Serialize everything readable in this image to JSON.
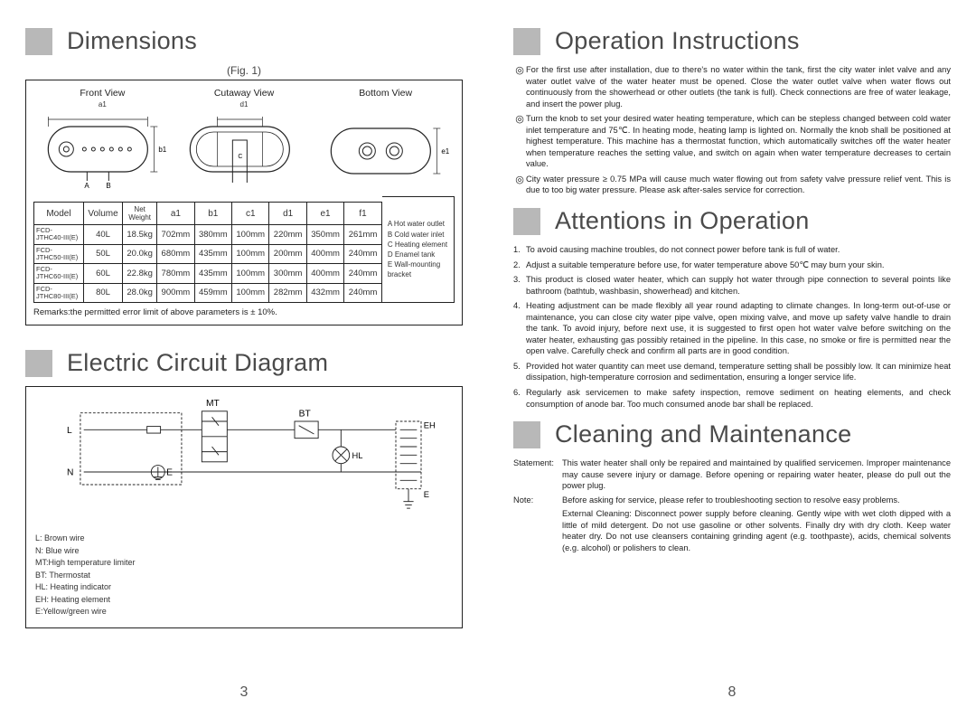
{
  "left": {
    "dimensions": {
      "title": "Dimensions",
      "fig": "(Fig. 1)",
      "views": {
        "front": "Front View",
        "cutaway": "Cutaway View",
        "bottom": "Bottom View",
        "labels": {
          "a1": "a1",
          "b1": "b1",
          "d1": "d1",
          "e1": "e1",
          "A": "A",
          "B": "B",
          "C": "C"
        }
      },
      "columns": [
        "Model",
        "Volume",
        "Net Weight",
        "a1",
        "b1",
        "c1",
        "d1",
        "e1",
        "f1"
      ],
      "rows": [
        [
          "FCD-\nJTHC40-III(E)",
          "40L",
          "18.5kg",
          "702mm",
          "380mm",
          "100mm",
          "220mm",
          "350mm",
          "261mm"
        ],
        [
          "FCD-\nJTHC50-III(E)",
          "50L",
          "20.0kg",
          "680mm",
          "435mm",
          "100mm",
          "200mm",
          "400mm",
          "240mm"
        ],
        [
          "FCD-\nJTHC60-III(E)",
          "60L",
          "22.8kg",
          "780mm",
          "435mm",
          "100mm",
          "300mm",
          "400mm",
          "240mm"
        ],
        [
          "FCD-\nJTHC80-III(E)",
          "80L",
          "28.0kg",
          "900mm",
          "459mm",
          "100mm",
          "282mm",
          "432mm",
          "240mm"
        ]
      ],
      "legend": {
        "A": "A Hot water outlet",
        "B": "B Cold water inlet",
        "C": "C Heating element",
        "D": "D Enamel tank",
        "E": "E Wall-mounting bracket"
      },
      "remarks": "Remarks:the permitted error limit of above parameters is ± 10%."
    },
    "circuit": {
      "title": "Electric Circuit Diagram",
      "labels": {
        "MT": "MT",
        "BT": "BT",
        "L": "L",
        "N": "N",
        "E": "E",
        "EH": "EH",
        "HL": "HL"
      },
      "legend": [
        "L: Brown wire",
        "N: Blue wire",
        "MT:High temperature limiter",
        "BT: Thermostat",
        "HL: Heating indicator",
        "EH: Heating element",
        "E:Yellow/green wire"
      ]
    },
    "pagenum": "3"
  },
  "right": {
    "op": {
      "title": "Operation Instructions",
      "items": [
        "For the first use after installation, due to there's no water within the tank, first the city water inlet valve and any water outlet valve of the water heater must be opened. Close the water outlet valve when water flows out continuously from the showerhead or other outlets (the tank is full). Check connections are free of water leakage, and insert the power plug.",
        "Turn the knob to set your desired water heating temperature, which can be stepless changed between cold water inlet temperature and 75℃. In heating mode, heating lamp is lighted on. Normally the knob shall be positioned at highest temperature. This machine has a thermostat function, which automatically switches off the water heater when temperature reaches the setting value, and switch on again when water temperature decreases to certain value.",
        "City water pressure ≥ 0.75 MPa will cause much water flowing out from safety valve pressure relief vent. This is due to too big water pressure. Please ask after-sales service for correction."
      ]
    },
    "att": {
      "title": "Attentions in Operation",
      "items": [
        "To avoid causing machine troubles, do not connect power before tank is full of water.",
        "Adjust a suitable temperature before use, for water temperature above 50℃ may burn your skin.",
        "This product is closed water heater, which can supply hot water through pipe connection to several points like bathroom (bathtub, washbasin, showerhead) and kitchen.",
        "Heating adjustment can be made flexibly all year round adapting to climate changes. In long-term out-of-use or maintenance, you can close city water pipe valve, open mixing valve, and move up safety valve handle to drain the tank. To avoid injury, before next use, it is suggested to first open hot water valve before switching on the water heater, exhausting gas possibly retained in the pipeline. In this case, no smoke or fire is permitted near the open valve. Carefully check and confirm all parts are in good condition.",
        "Provided hot water quantity can meet use demand, temperature setting shall be possibly low. It can minimize heat dissipation, high-temperature corrosion and sedimentation, ensuring a longer service life.",
        "Regularly ask servicemen to make safety inspection, remove sediment on heating elements, and check consumption of anode bar. Too much consumed anode bar shall be replaced."
      ]
    },
    "clean": {
      "title": "Cleaning and Maintenance",
      "statement_label": "Statement:",
      "statement": "This water heater shall only be repaired and maintained by qualified servicemen. Improper maintenance may cause severe injury or damage. Before opening or repairing water heater, please do pull out the power plug.",
      "note_label": "Note:",
      "note": "Before asking for service, please refer to troubleshooting section to resolve easy problems.",
      "ext_label": "",
      "ext": "External Cleaning: Disconnect power supply before cleaning. Gently wipe with wet cloth dipped with a little of mild detergent. Do not use gasoline or other solvents. Finally dry with dry cloth. Keep water heater dry. Do not use cleansers containing grinding agent (e.g. toothpaste), acids, chemical solvents (e.g. alcohol) or polishers to clean."
    },
    "pagenum": "8"
  },
  "colors": {
    "marker": "#b8b8b8",
    "border": "#222222",
    "text": "#333333"
  }
}
